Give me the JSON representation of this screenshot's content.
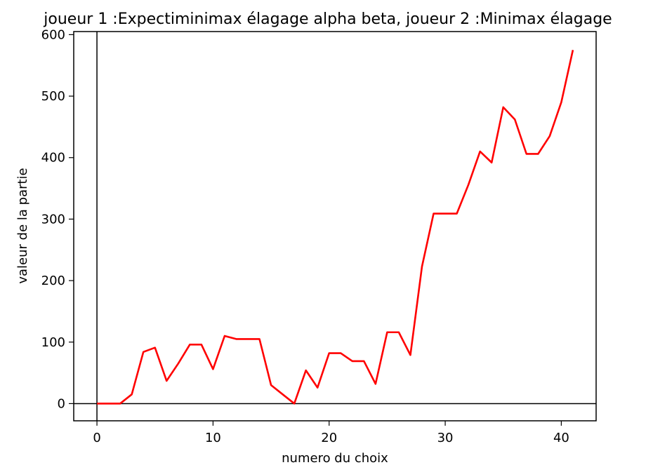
{
  "chart_data": {
    "type": "line",
    "title": "joueur 1 :Expectiminimax élagage alpha beta, joueur 2 :Minimax élagage",
    "xlabel": "numero du choix",
    "ylabel": "valeur de la partie",
    "xlim": [
      -2,
      43
    ],
    "ylim": [
      -28,
      605
    ],
    "xticks": [
      0,
      10,
      20,
      30,
      40
    ],
    "yticks": [
      0,
      100,
      200,
      300,
      400,
      500,
      600
    ],
    "grid": false,
    "reference_lines": {
      "x": 0,
      "y": 0,
      "color": "#000000"
    },
    "series": [
      {
        "color": "#ff0000",
        "x": [
          0,
          1,
          2,
          3,
          4,
          5,
          6,
          7,
          8,
          9,
          10,
          11,
          12,
          13,
          14,
          15,
          16,
          17,
          18,
          19,
          20,
          21,
          22,
          23,
          24,
          25,
          26,
          27,
          28,
          29,
          30,
          31,
          32,
          33,
          34,
          35,
          36,
          37,
          38,
          39,
          40,
          41
        ],
        "y": [
          0,
          0,
          0,
          15,
          84,
          91,
          37,
          65,
          96,
          96,
          56,
          110,
          105,
          105,
          105,
          30,
          15,
          0,
          54,
          26,
          82,
          82,
          69,
          69,
          32,
          116,
          116,
          79,
          223,
          309,
          309,
          309,
          356,
          410,
          392,
          482,
          462,
          406,
          406,
          435,
          490,
          575
        ]
      }
    ]
  }
}
